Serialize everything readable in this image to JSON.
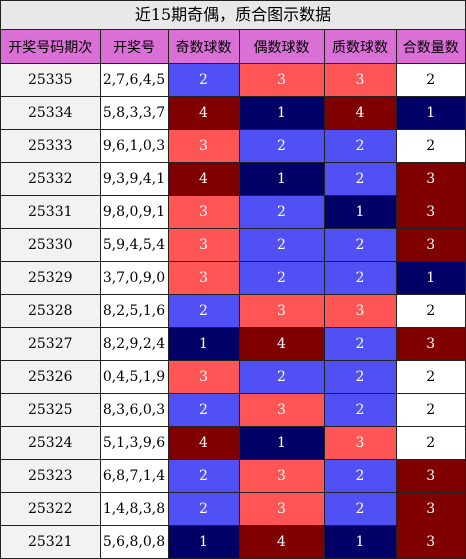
{
  "title": "近15期奇偶，质合图示数据",
  "headers": [
    "开奖号码期次",
    "开奖号",
    "奇数球数",
    "偶数球数",
    "质数球数",
    "合数量数"
  ],
  "colors": {
    "header_bg": "#da70d6",
    "white": "#ffffff",
    "red": "#ff5555",
    "blue": "#5050f5",
    "maroon": "#800000",
    "navy": "#000066"
  },
  "rows": [
    {
      "period": "25335",
      "numbers": "2,7,6,4,5",
      "odd": "2",
      "even": "3",
      "prime": "3",
      "composite": "2",
      "odd_color": "blue",
      "even_color": "red",
      "prime_color": "red",
      "composite_color": "white"
    },
    {
      "period": "25334",
      "numbers": "5,8,3,3,7",
      "odd": "4",
      "even": "1",
      "prime": "4",
      "composite": "1",
      "odd_color": "maroon",
      "even_color": "navy",
      "prime_color": "maroon",
      "composite_color": "navy"
    },
    {
      "period": "25333",
      "numbers": "9,6,1,0,3",
      "odd": "3",
      "even": "2",
      "prime": "2",
      "composite": "2",
      "odd_color": "red",
      "even_color": "blue",
      "prime_color": "blue",
      "composite_color": "white"
    },
    {
      "period": "25332",
      "numbers": "9,3,9,4,1",
      "odd": "4",
      "even": "1",
      "prime": "2",
      "composite": "3",
      "odd_color": "maroon",
      "even_color": "navy",
      "prime_color": "blue",
      "composite_color": "maroon"
    },
    {
      "period": "25331",
      "numbers": "9,8,0,9,1",
      "odd": "3",
      "even": "2",
      "prime": "1",
      "composite": "3",
      "odd_color": "red",
      "even_color": "blue",
      "prime_color": "navy",
      "composite_color": "maroon"
    },
    {
      "period": "25330",
      "numbers": "5,9,4,5,4",
      "odd": "3",
      "even": "2",
      "prime": "2",
      "composite": "3",
      "odd_color": "red",
      "even_color": "blue",
      "prime_color": "blue",
      "composite_color": "maroon"
    },
    {
      "period": "25329",
      "numbers": "3,7,0,9,0",
      "odd": "3",
      "even": "2",
      "prime": "2",
      "composite": "1",
      "odd_color": "red",
      "even_color": "blue",
      "prime_color": "blue",
      "composite_color": "navy"
    },
    {
      "period": "25328",
      "numbers": "8,2,5,1,6",
      "odd": "2",
      "even": "3",
      "prime": "3",
      "composite": "2",
      "odd_color": "blue",
      "even_color": "red",
      "prime_color": "red",
      "composite_color": "white"
    },
    {
      "period": "25327",
      "numbers": "8,2,9,2,4",
      "odd": "1",
      "even": "4",
      "prime": "2",
      "composite": "3",
      "odd_color": "navy",
      "even_color": "maroon",
      "prime_color": "blue",
      "composite_color": "maroon"
    },
    {
      "period": "25326",
      "numbers": "0,4,5,1,9",
      "odd": "3",
      "even": "2",
      "prime": "2",
      "composite": "2",
      "odd_color": "red",
      "even_color": "blue",
      "prime_color": "blue",
      "composite_color": "white"
    },
    {
      "period": "25325",
      "numbers": "8,3,6,0,3",
      "odd": "2",
      "even": "3",
      "prime": "2",
      "composite": "2",
      "odd_color": "blue",
      "even_color": "red",
      "prime_color": "blue",
      "composite_color": "white"
    },
    {
      "period": "25324",
      "numbers": "5,1,3,9,6",
      "odd": "4",
      "even": "1",
      "prime": "3",
      "composite": "2",
      "odd_color": "maroon",
      "even_color": "navy",
      "prime_color": "red",
      "composite_color": "white"
    },
    {
      "period": "25323",
      "numbers": "6,8,7,1,4",
      "odd": "2",
      "even": "3",
      "prime": "2",
      "composite": "3",
      "odd_color": "blue",
      "even_color": "red",
      "prime_color": "blue",
      "composite_color": "maroon"
    },
    {
      "period": "25322",
      "numbers": "1,4,8,3,8",
      "odd": "2",
      "even": "3",
      "prime": "2",
      "composite": "3",
      "odd_color": "blue",
      "even_color": "red",
      "prime_color": "blue",
      "composite_color": "maroon"
    },
    {
      "period": "25321",
      "numbers": "5,6,8,0,8",
      "odd": "1",
      "even": "4",
      "prime": "1",
      "composite": "3",
      "odd_color": "navy",
      "even_color": "maroon",
      "prime_color": "navy",
      "composite_color": "maroon"
    }
  ]
}
